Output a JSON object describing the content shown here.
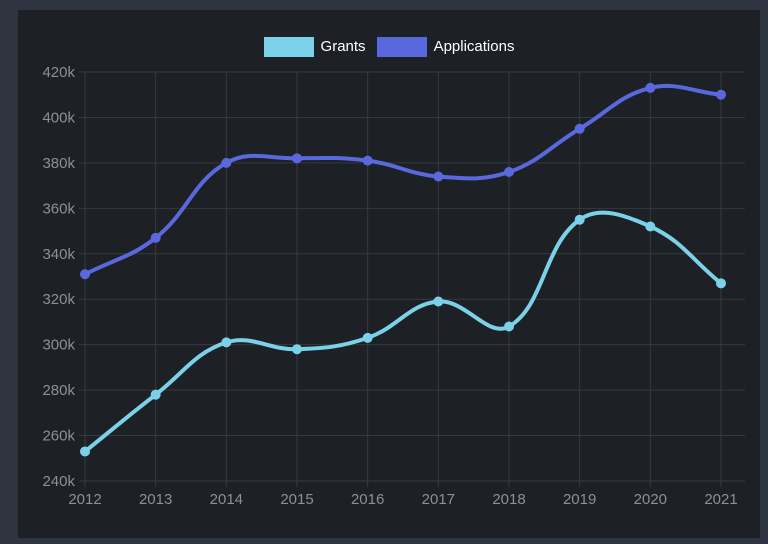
{
  "legend": {
    "items": [
      {
        "label": "Grants",
        "color": "#7bd2e8"
      },
      {
        "label": "Applications",
        "color": "#5a68de"
      }
    ]
  },
  "chart_data": {
    "type": "line",
    "title": "",
    "xlabel": "",
    "ylabel": "",
    "x": [
      "2012",
      "2013",
      "2014",
      "2015",
      "2016",
      "2017",
      "2018",
      "2019",
      "2020",
      "2021"
    ],
    "series": [
      {
        "name": "Grants",
        "color": "#7bd2e8",
        "values": [
          253000,
          278000,
          301000,
          298000,
          303000,
          319000,
          308000,
          355000,
          352000,
          327000
        ]
      },
      {
        "name": "Applications",
        "color": "#5a68de",
        "values": [
          331000,
          347000,
          380000,
          382000,
          381000,
          374000,
          376000,
          395000,
          413000,
          410000
        ]
      }
    ],
    "ylim": [
      240000,
      420000
    ],
    "ytick_step": 20000,
    "ytick_labels": [
      "240k",
      "260k",
      "280k",
      "300k",
      "320k",
      "340k",
      "360k",
      "380k",
      "400k",
      "420k"
    ],
    "grid": true,
    "smooth": true,
    "legend_position": "top",
    "point_radius": 5,
    "line_width": 4
  },
  "colors": {
    "frame": "#2e3541",
    "panel": "#1d2126",
    "grid": "#343a41",
    "tick_label": "#8a9097",
    "legend_text": "#ffffff"
  }
}
